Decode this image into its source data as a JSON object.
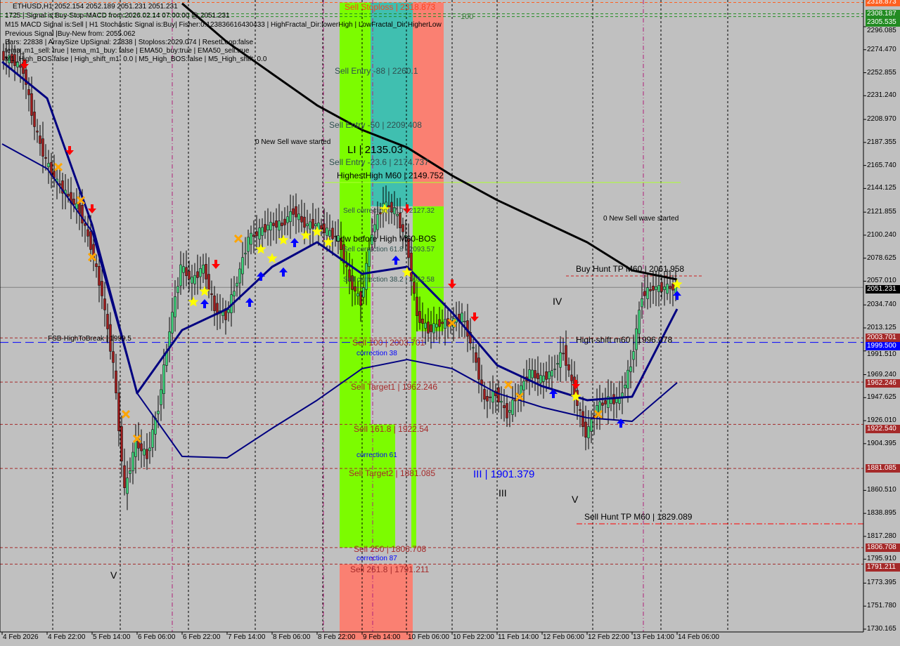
{
  "header": {
    "symbol_line": "ETHUSD,H1  2052.154 2052.189 2051.231 2051.231",
    "info_lines": [
      "1725 | Signal is Buy-Stop-MACD from:2026.02.14 07:00:00 @ 2051.231",
      "M15 MACD Signal is:Sell | H1 Stochastic Signal is:Buy| Fisher:0.123836616430433 | HighFractal_Dir:lowerHigh | LowFractal_Dir:HigherLow",
      "Previous Signal |Buy-New from: 2055.062",
      "Bars: 22838 | ArraySize UpSignal: 22838 | Stoploss:2029.074 | ResetLoop:false",
      "tema_m1_sell: true | tema_m1_buy: false | EMA50_buy:true | EMA50_sell:true",
      "M1_High_BOS:false | High_shift_m1: 0.0 | M5_High_BOS:false | M5_High_shift: 0.0"
    ]
  },
  "colors": {
    "background": "#c0c0c0",
    "bull": "#3cd37a",
    "bear": "#a01c1c",
    "ma200": "#000000",
    "ema_fast": "#000080",
    "ema_slow": "#000080",
    "zone_green": "#7cfc00",
    "zone_teal": "#40bfb0",
    "zone_salmon": "#fa8072",
    "level_red": "#a52a2a",
    "stoploss": "#ff6020",
    "target_green": "#228b22"
  },
  "chart_data": {
    "type": "candlestick",
    "title": "ETHUSD,H1",
    "ylim": [
      1730.165,
      2318.873
    ],
    "y_ticks": [
      "2296.085",
      "2274.470",
      "2252.855",
      "2231.240",
      "2208.970",
      "2187.355",
      "2165.740",
      "2144.125",
      "2121.855",
      "2100.240",
      "2078.625",
      "2057.010",
      "2034.740",
      "2013.125",
      "1991.510",
      "1969.240",
      "1947.625",
      "1926.010",
      "1904.395",
      "1860.510",
      "1838.895",
      "1817.280",
      "1795.910",
      "1773.395",
      "1751.780",
      "1730.165"
    ],
    "x_ticks": [
      "4 Feb 2026",
      "4 Feb 22:00",
      "5 Feb 14:00",
      "6 Feb 06:00",
      "6 Feb 22:00",
      "7 Feb 14:00",
      "8 Feb 06:00",
      "8 Feb 22:00",
      "9 Feb 14:00",
      "10 Feb 06:00",
      "10 Feb 22:00",
      "11 Feb 14:00",
      "12 Feb 06:00",
      "12 Feb 22:00",
      "13 Feb 14:00",
      "14 Feb 06:00"
    ],
    "x": [
      "4 Feb 06:00",
      "4 Feb 10:00",
      "4 Feb 14:00",
      "4 Feb 18:00",
      "4 Feb 22:00",
      "5 Feb 02:00",
      "5 Feb 06:00",
      "5 Feb 10:00",
      "5 Feb 14:00",
      "5 Feb 18:00",
      "5 Feb 22:00",
      "6 Feb 02:00",
      "6 Feb 06:00",
      "6 Feb 10:00",
      "6 Feb 14:00",
      "6 Feb 18:00",
      "6 Feb 22:00",
      "7 Feb 02:00",
      "7 Feb 06:00",
      "7 Feb 10:00",
      "7 Feb 14:00",
      "7 Feb 18:00",
      "7 Feb 22:00",
      "8 Feb 02:00",
      "8 Feb 06:00",
      "8 Feb 10:00",
      "8 Feb 14:00",
      "8 Feb 18:00",
      "8 Feb 22:00",
      "9 Feb 02:00",
      "9 Feb 06:00",
      "9 Feb 10:00",
      "9 Feb 14:00",
      "9 Feb 18:00",
      "9 Feb 22:00",
      "10 Feb 02:00",
      "10 Feb 06:00",
      "10 Feb 10:00",
      "10 Feb 14:00",
      "10 Feb 18:00",
      "10 Feb 22:00",
      "11 Feb 02:00",
      "11 Feb 06:00",
      "11 Feb 10:00",
      "11 Feb 14:00",
      "11 Feb 18:00",
      "11 Feb 22:00",
      "12 Feb 02:00",
      "12 Feb 06:00",
      "12 Feb 10:00",
      "12 Feb 14:00",
      "12 Feb 18:00",
      "12 Feb 22:00",
      "13 Feb 02:00",
      "13 Feb 06:00",
      "13 Feb 10:00",
      "13 Feb 14:00",
      "13 Feb 18:00",
      "13 Feb 22:00",
      "14 Feb 02:00",
      "14 Feb 06:00"
    ],
    "close": [
      2268.4,
      2265.1,
      2255.2,
      2202.4,
      2169.4,
      2149.6,
      2136.4,
      2123.2,
      2090.2,
      2044.1,
      1978.1,
      1859.4,
      1905.6,
      1892.4,
      1938.6,
      2011.1,
      2070.5,
      2057.3,
      2070.5,
      2030.9,
      2024.3,
      2057.3,
      2096.9,
      2103.5,
      2110.1,
      2110.1,
      2123.2,
      2110.1,
      2110.1,
      2103.5,
      2096.9,
      2057.3,
      2037.5,
      2103.5,
      2129.8,
      2123.2,
      2096.9,
      2024.3,
      2011.1,
      2017.7,
      2017.7,
      2024.3,
      1991.3,
      1945.2,
      1951.8,
      1932.0,
      1951.8,
      1971.6,
      1965.0,
      1971.6,
      1991.3,
      1951.8,
      1912.2,
      1938.6,
      1945.2,
      1945.2,
      1978.1,
      2044.1,
      2050.7,
      2050.7,
      2051.231
    ],
    "series": [
      {
        "key": "ma200",
        "points": [
          [
            "6 Feb 22:00",
            2317.9
          ],
          [
            "7 Feb 14:00",
            2281.6
          ],
          [
            "8 Feb 06:00",
            2251.9
          ],
          [
            "8 Feb 22:00",
            2222.2
          ],
          [
            "9 Feb 14:00",
            2199.1
          ],
          [
            "10 Feb 06:00",
            2182.6
          ],
          [
            "10 Feb 22:00",
            2156.2
          ],
          [
            "11 Feb 14:00",
            2133.2
          ],
          [
            "12 Feb 06:00",
            2113.4
          ],
          [
            "12 Feb 22:00",
            2093.6
          ],
          [
            "13 Feb 14:00",
            2067.2
          ],
          [
            "14 Feb 06:00",
            2058.6
          ]
        ]
      },
      {
        "key": "ema_fast",
        "points": [
          [
            "4 Feb 06:00",
            2263.1
          ],
          [
            "4 Feb 22:00",
            2228.8
          ],
          [
            "5 Feb 14:00",
            2110.1
          ],
          [
            "6 Feb 06:00",
            1951.8
          ],
          [
            "6 Feb 22:00",
            2011.1
          ],
          [
            "7 Feb 14:00",
            2030.9
          ],
          [
            "8 Feb 06:00",
            2070.5
          ],
          [
            "8 Feb 22:00",
            2093.6
          ],
          [
            "9 Feb 14:00",
            2063.9
          ],
          [
            "10 Feb 06:00",
            2070.5
          ],
          [
            "10 Feb 22:00",
            2027.6
          ],
          [
            "11 Feb 14:00",
            1978.1
          ],
          [
            "12 Feb 06:00",
            1958.4
          ],
          [
            "12 Feb 22:00",
            1945.2
          ],
          [
            "13 Feb 14:00",
            1948.5
          ],
          [
            "14 Feb 06:00",
            2030.9
          ]
        ]
      },
      {
        "key": "ema_slow",
        "points": [
          [
            "4 Feb 06:00",
            2185.9
          ],
          [
            "4 Feb 22:00",
            2162.8
          ],
          [
            "5 Feb 14:00",
            2103.5
          ],
          [
            "6 Feb 06:00",
            1951.8
          ],
          [
            "6 Feb 22:00",
            1892.4
          ],
          [
            "7 Feb 14:00",
            1891.1
          ],
          [
            "8 Feb 06:00",
            1918.8
          ],
          [
            "8 Feb 22:00",
            1945.2
          ],
          [
            "9 Feb 14:00",
            1974.9
          ],
          [
            "10 Feb 06:00",
            1983.4
          ],
          [
            "10 Feb 22:00",
            1974.9
          ],
          [
            "11 Feb 14:00",
            1951.8
          ],
          [
            "12 Feb 06:00",
            1938.6
          ],
          [
            "12 Feb 22:00",
            1928.7
          ],
          [
            "13 Feb 14:00",
            1925.4
          ],
          [
            "14 Feb 06:00",
            1961.7
          ]
        ]
      }
    ],
    "markers": {
      "star": [
        [
          "7 Feb 02:00",
          2037.5
        ],
        [
          "7 Feb 06:00",
          2047.4
        ],
        [
          "8 Feb 02:00",
          2087.0
        ],
        [
          "8 Feb 06:00",
          2078.4
        ],
        [
          "8 Feb 10:00",
          2095.6
        ],
        [
          "8 Feb 18:00",
          2100.0
        ],
        [
          "8 Feb 22:00",
          2103.5
        ],
        [
          "9 Feb 02:00",
          2093.6
        ],
        [
          "9 Feb 22:00",
          2124.6
        ],
        [
          "10 Feb 06:00",
          2065.2
        ],
        [
          "12 Feb 18:00",
          1948.5
        ],
        [
          "14 Feb 06:00",
          2054.0
        ]
      ],
      "up_arrow": [
        [
          "7 Feb 06:00",
          2036.2
        ],
        [
          "7 Feb 22:00",
          2037.5
        ],
        [
          "8 Feb 02:00",
          2062.0
        ],
        [
          "8 Feb 10:00",
          2066.0
        ],
        [
          "8 Feb 14:00",
          2093.6
        ],
        [
          "10 Feb 02:00",
          2077.1
        ],
        [
          "12 Feb 10:00",
          1951.8
        ],
        [
          "13 Feb 10:00",
          1924.0
        ],
        [
          "14 Feb 06:00",
          2044.0
        ]
      ],
      "down_arrow": [
        [
          "4 Feb 14:00",
          2260.5
        ],
        [
          "5 Feb 06:00",
          2179.3
        ],
        [
          "5 Feb 14:00",
          2124.6
        ],
        [
          "7 Feb 10:00",
          2072.5
        ],
        [
          "10 Feb 06:00",
          2124.6
        ],
        [
          "10 Feb 22:00",
          2054.0
        ],
        [
          "11 Feb 06:00",
          2023.0
        ],
        [
          "12 Feb 18:00",
          1959.7
        ]
      ],
      "cross": [
        [
          "5 Feb 02:00",
          2164.2
        ],
        [
          "5 Feb 10:00",
          2133.0
        ],
        [
          "5 Feb 14:00",
          2079.7
        ],
        [
          "6 Feb 02:00",
          1932.0
        ],
        [
          "6 Feb 06:00",
          1909.0
        ],
        [
          "7 Feb 18:00",
          2096.9
        ],
        [
          "10 Feb 22:00",
          2017.7
        ],
        [
          "11 Feb 18:00",
          1959.7
        ],
        [
          "11 Feb 22:00",
          1948.5
        ],
        [
          "13 Feb 02:00",
          1932.0
        ]
      ]
    },
    "levels": [
      {
        "price": 2318.873,
        "label": "2318.873",
        "color": "#ff6020",
        "style": "dash",
        "box": true
      },
      {
        "price": 2308.187,
        "label": "2308.187",
        "color": "#228b22",
        "style": "dash",
        "box": true
      },
      {
        "price": 2305.535,
        "label": "2305.535",
        "color": "#228b22",
        "style": "dash",
        "box": true
      },
      {
        "price": 2149.752,
        "label": "",
        "color": "#adff2f",
        "style": "solid",
        "box": false
      },
      {
        "price": 2061.958,
        "label": "",
        "color": "#cc2020",
        "style": "dash",
        "box": false
      },
      {
        "price": 2051.231,
        "label": "2051.231",
        "color": "#808080",
        "style": "solid",
        "box": true,
        "boxcolor": "#000000"
      },
      {
        "price": 2003.701,
        "label": "2003.701",
        "color": "#a52a2a",
        "style": "dash",
        "box": true
      },
      {
        "price": 1999.5,
        "label": "1999.500",
        "color": "#0000ff",
        "style": "longdash",
        "box": true,
        "boxcolor": "#0000ff"
      },
      {
        "price": 1962.246,
        "label": "1962.246",
        "color": "#a52a2a",
        "style": "dash",
        "box": true
      },
      {
        "price": 1922.54,
        "label": "1922.540",
        "color": "#a52a2a",
        "style": "dash",
        "box": true
      },
      {
        "price": 1881.085,
        "label": "1881.085",
        "color": "#a52a2a",
        "style": "dash",
        "box": true
      },
      {
        "price": 1829.089,
        "label": "",
        "color": "#ff0000",
        "style": "dashdot",
        "box": false
      },
      {
        "price": 1806.708,
        "label": "1806.708",
        "color": "#a52a2a",
        "style": "dash",
        "box": true
      },
      {
        "price": 1791.211,
        "label": "1791.211",
        "color": "#a52a2a",
        "style": "dash",
        "box": true
      }
    ],
    "annotations": {
      "sell_stoploss": "Sell Stoploss | 2318.873",
      "target_100": "100",
      "sell_entry_88": "Sell Entry -88 | 2260.1",
      "sell_entry_50": "Sell Entry -50 | 2209.408",
      "li": "LI | 2135.03",
      "sell_entry_236": "Sell Entry -23.6 | 2174.737",
      "highest_high": "HighestHigh    M60 | 2149.752",
      "sell_corr_87": "Sell correction 87.0 | 2127.32",
      "low_before_high": "Low before High  M60-BOS",
      "sell_corr_61": "Sell correction 61.8 | 2093.57",
      "sell_corr_38": "Sell correction 38.2 | 2052.58",
      "sell_100": "Sell 100 | 2003.701",
      "correction_38": "correction 38",
      "sell_target1": "Sell Target1 | 1962.246",
      "sell_1618": "Sell 161.8 | 1922.54",
      "correction_61": "correction 61",
      "sell_target2": "Sell Target2 | 1881.085",
      "sell_250": "Sell  250 | 1806.708",
      "correction_87": "correction 87",
      "sell_2618": "Sell 261.8 | 1791.211",
      "new_sell_wave_1": "0 New Sell wave started",
      "new_sell_wave_2": "0 New Sell wave started",
      "buy_hunt": "Buy Hunt  TP M60 | 2061.958",
      "high_shift": "High-shift m60 | 1996.078",
      "sell_hunt": "Sell Hunt TP M60 | 1829.089",
      "fsb": "FSB-HighToBreak | 1999.5",
      "wave_iii_price": "III | 1901.379",
      "wave_iii": "III",
      "wave_iv": "IV",
      "wave_v_1": "V",
      "wave_v_2": "V"
    }
  }
}
